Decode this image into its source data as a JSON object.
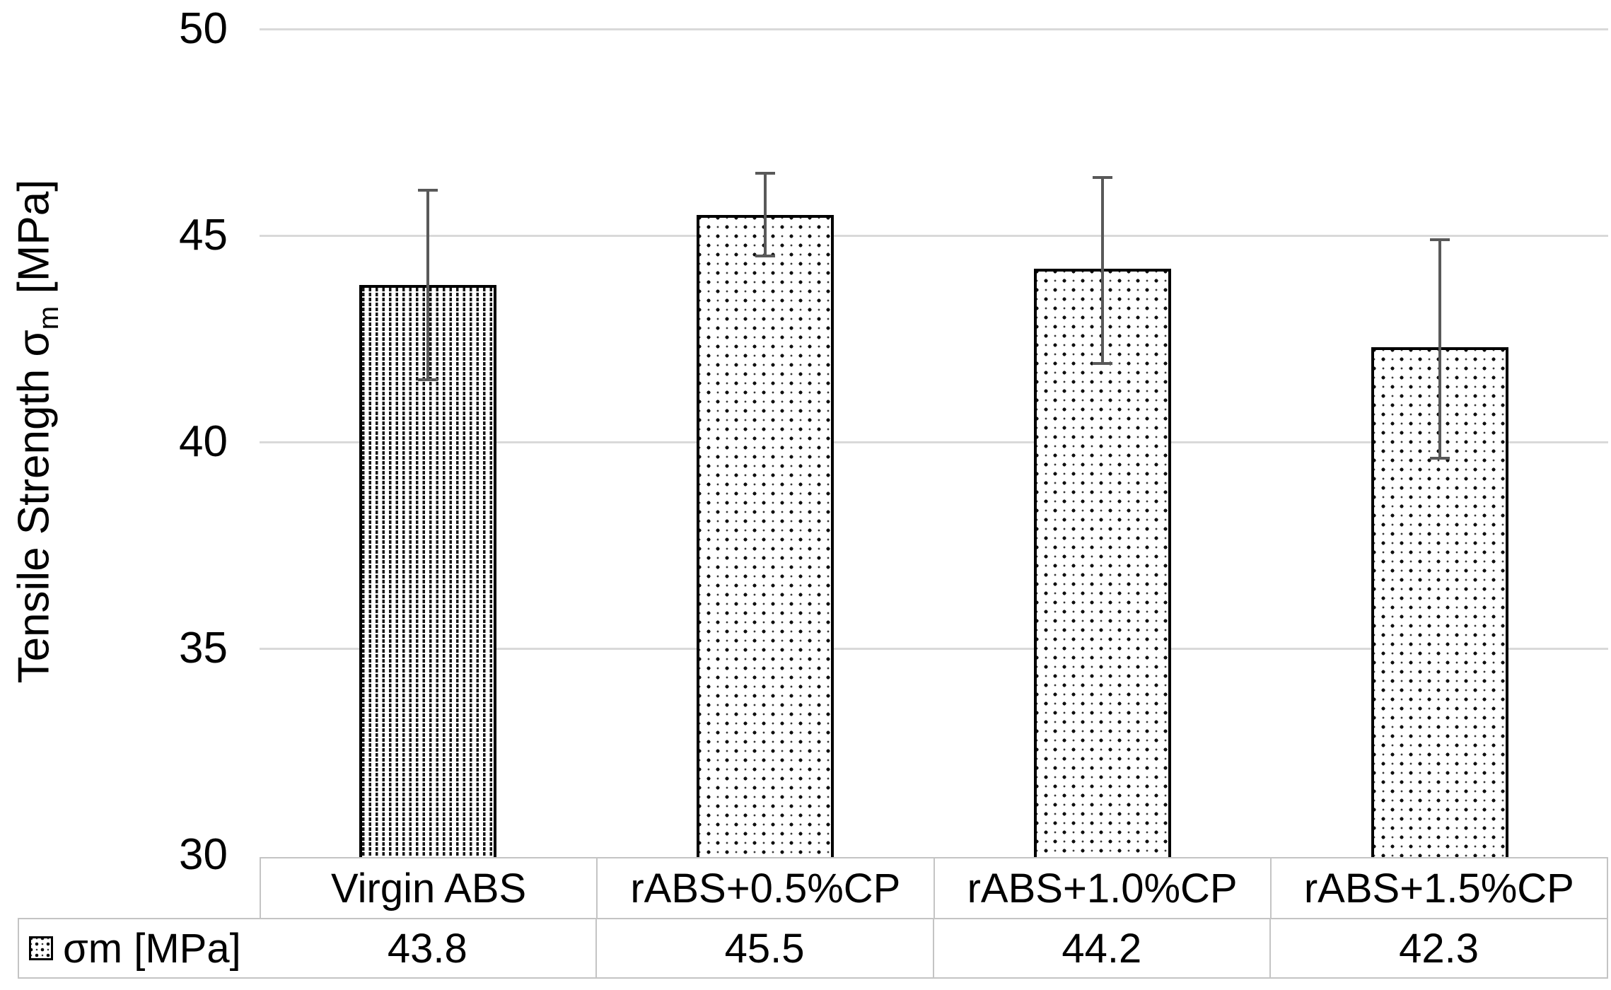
{
  "chart_data": {
    "type": "bar",
    "title": "",
    "ylabel": {
      "pre": "Tensile Strength σ",
      "sub": "m",
      "post": " [MPa]"
    },
    "categories": [
      "Virgin ABS",
      "rABS+0.5%CP",
      "rABS+1.0%CP",
      "rABS+1.5%CP"
    ],
    "series": [
      {
        "name": "σm [MPa]",
        "values": [
          43.8,
          45.5,
          44.2,
          42.3
        ],
        "error_high": [
          46.1,
          46.5,
          46.4,
          44.9
        ],
        "error_low": [
          41.5,
          44.5,
          41.9,
          39.6
        ]
      }
    ],
    "ylim": [
      30,
      50
    ],
    "yticks": [
      50,
      45,
      40,
      35,
      30
    ],
    "grid": "horizontal",
    "legend_position": "data-table-row-header",
    "bar_patterns": [
      "dotted-vertical",
      "dotted-diamond",
      "dotted-diamond",
      "dotted-diamond"
    ],
    "data_table": {
      "row_label": "σm [MPa]",
      "display_values": [
        "43.8",
        "45.5",
        "44.2",
        "42.3"
      ]
    },
    "colors": {
      "background": "#ffffff",
      "gridline": "#d9d9d9",
      "error_bar": "#595959",
      "bar_border": "#000000",
      "bar_fill": "#ffffff",
      "table_border": "#c4c4c4",
      "text": "#000000"
    }
  }
}
